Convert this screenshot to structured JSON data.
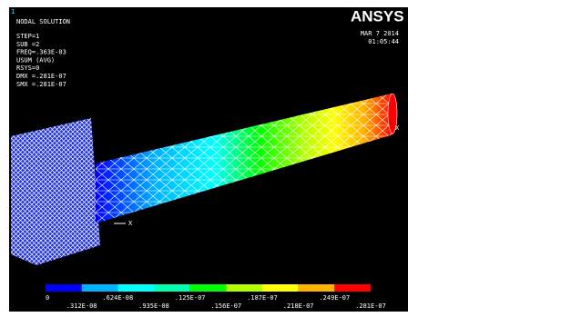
{
  "window": {
    "plot_number": "1",
    "title": "NODAL SOLUTION",
    "info_lines": [
      "STEP=1",
      "SUB =2",
      "FREQ=.363E-03",
      "USUM      (AVG)",
      "RSYS=0",
      "DMX =.281E-07",
      "SMX =.281E-07"
    ],
    "logo": "ANSYS",
    "date": "MAR  7 2014",
    "time": "01:05:44",
    "triad_label": "X",
    "max_label": "X"
  },
  "legend": {
    "colors": [
      "#0000ff",
      "#00b2ff",
      "#00ffff",
      "#00ffb2",
      "#00ff00",
      "#b2ff00",
      "#ffff00",
      "#ffb200",
      "#ff0000"
    ],
    "labels": [
      "0",
      ".312E-08",
      ".624E-08",
      ".935E-08",
      ".125E-07",
      ".156E-07",
      ".187E-07",
      ".218E-07",
      ".249E-07",
      ".281E-07"
    ]
  }
}
